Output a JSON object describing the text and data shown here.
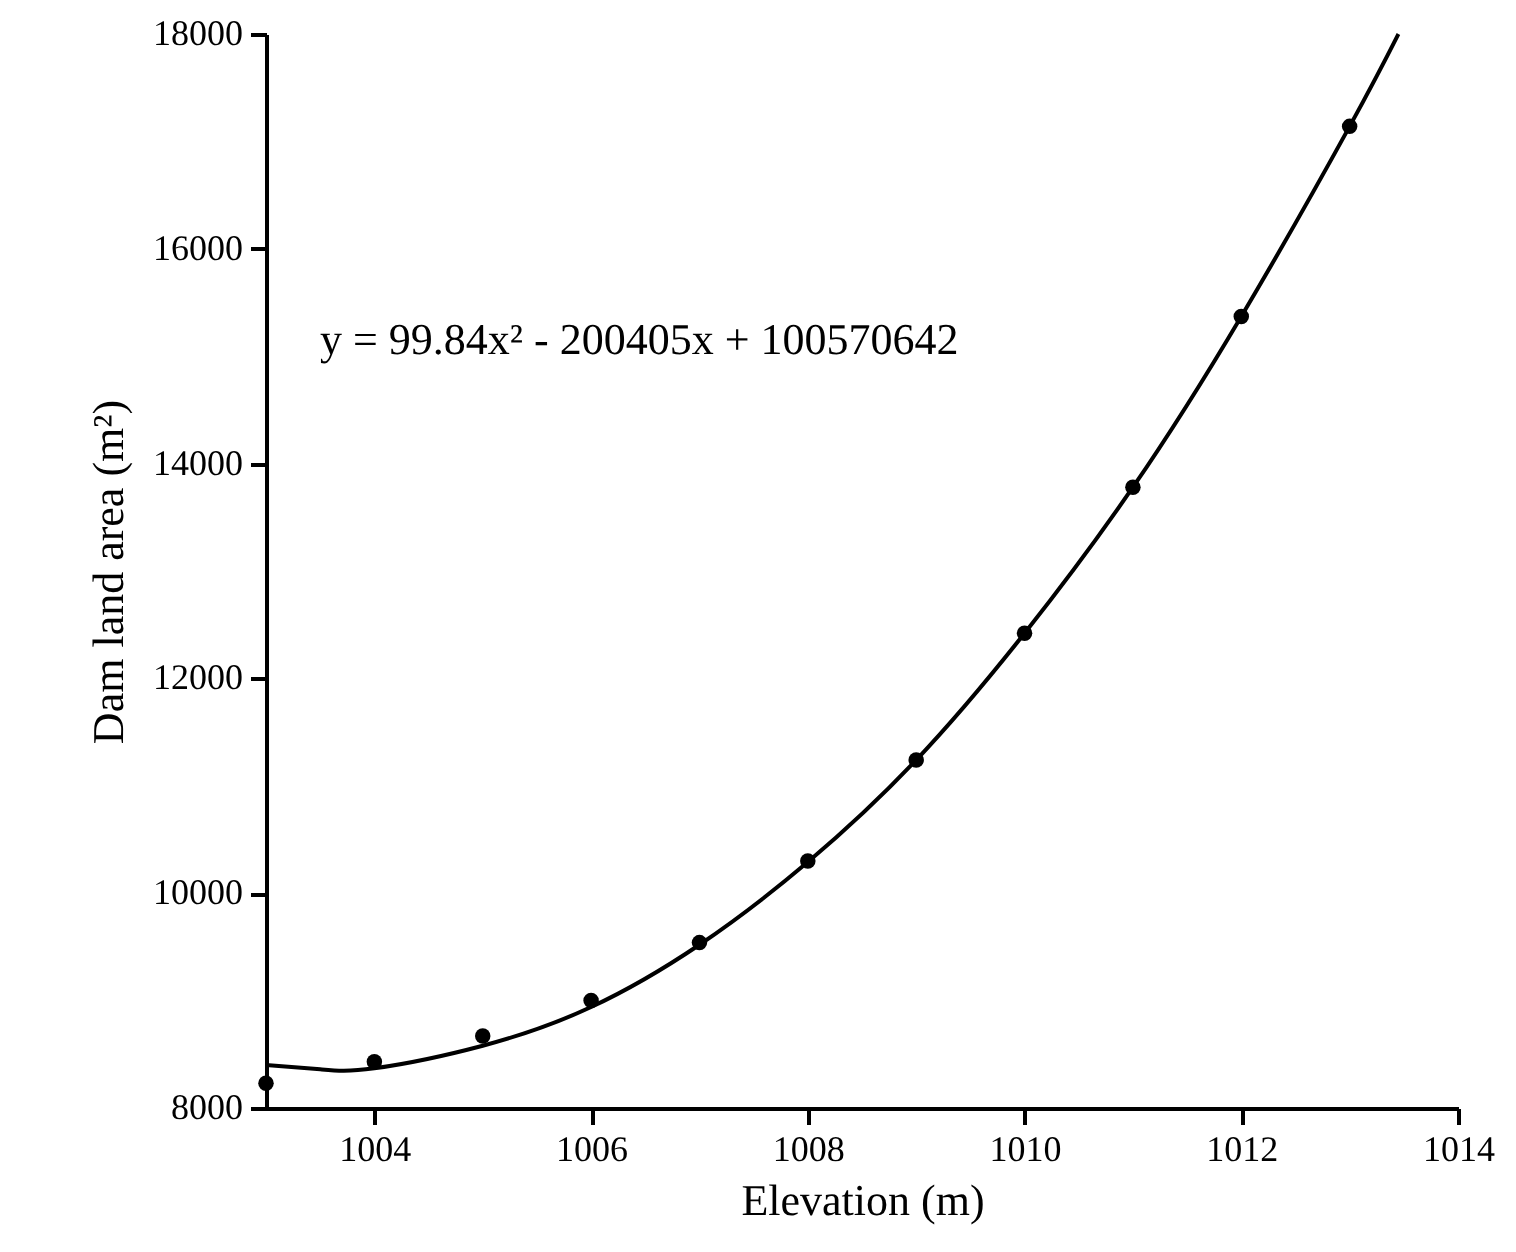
{
  "chart_data": {
    "type": "scatter",
    "xlabel": "Elevation (m)",
    "ylabel": "Dam land area (m²)",
    "annotations": [
      "y = 99.84x² - 200405x + 100570642"
    ],
    "xlim": [
      1003,
      1014
    ],
    "xticks": [
      1004,
      1006,
      1008,
      1010,
      1012,
      1014
    ],
    "ylim": [
      8000,
      18000
    ],
    "yticks": [
      8000,
      10000,
      12000,
      14000,
      16000,
      18000
    ],
    "marker": "circle",
    "series": [
      {
        "color": "#000000",
        "x": [
          1003,
          1004,
          1005,
          1006,
          1007,
          1008,
          1009,
          1010,
          1011,
          1012,
          1013
        ],
        "values": [
          8230,
          8430,
          8670,
          9000,
          9540,
          10300,
          11240,
          12420,
          13780,
          15370,
          17140
        ]
      },
      {
        "type": "line",
        "marker": "none",
        "color": "#000000",
        "x": [
          1003,
          1003.5,
          1004,
          1005,
          1006,
          1007,
          1008,
          1009,
          1010,
          1011,
          1012,
          1013,
          1013.45
        ],
        "values": [
          8400,
          8360,
          8370,
          8580,
          8940,
          9520,
          10290,
          11240,
          12420,
          13780,
          15370,
          17140,
          18000
        ]
      }
    ]
  }
}
